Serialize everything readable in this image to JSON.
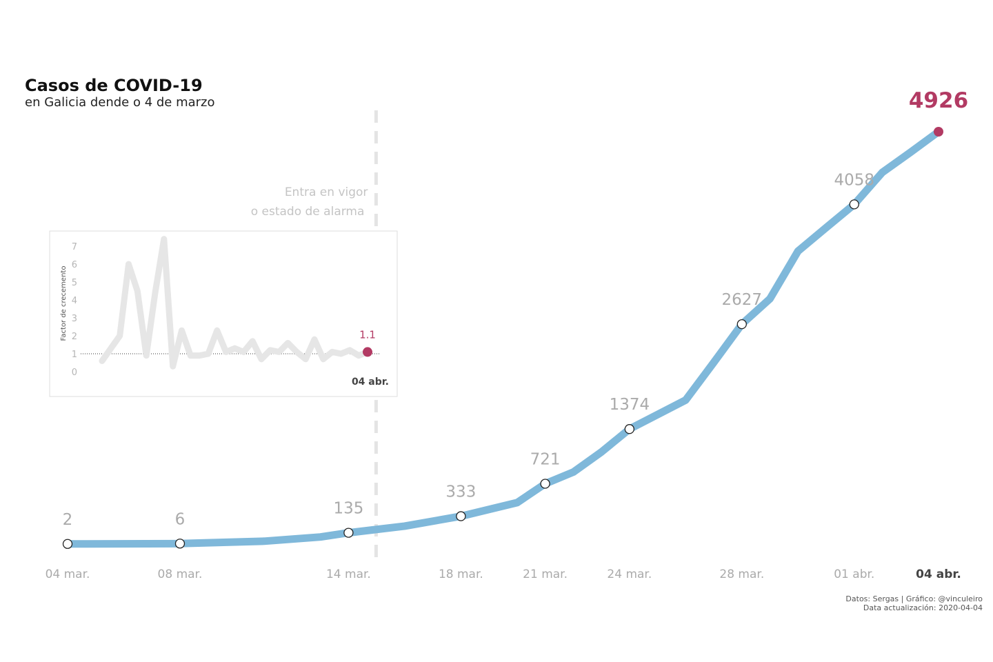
{
  "colors": {
    "line": "#7fb8da",
    "highlight": "#b23a63",
    "inset_line": "#e6e6e6",
    "marker_fill": "#ffffff",
    "marker_stroke": "#222222"
  },
  "annotation": {
    "line1": "Entra en vigor",
    "line2": "o estado de alarma",
    "date": "2020-03-14"
  },
  "source": {
    "line1": "Datos: Sergas | Gráfico: @vinculeiro",
    "line2": "Data actualización: 2020-04-04"
  },
  "chart_data": [
    {
      "type": "line",
      "title": "Casos de COVID-19",
      "subtitle": "en Galicia dende o 4 de marzo",
      "xlabel": "",
      "ylabel": "",
      "ylim": [
        0,
        5000
      ],
      "grid": false,
      "legend": "none",
      "x": [
        "2020-03-04",
        "2020-03-08",
        "2020-03-11",
        "2020-03-13",
        "2020-03-14",
        "2020-03-16",
        "2020-03-18",
        "2020-03-20",
        "2020-03-21",
        "2020-03-22",
        "2020-03-23",
        "2020-03-24",
        "2020-03-26",
        "2020-03-27",
        "2020-03-28",
        "2020-03-29",
        "2020-03-30",
        "2020-03-31",
        "2020-04-01",
        "2020-04-02",
        "2020-04-03",
        "2020-04-04"
      ],
      "series": [
        {
          "values": [
            2,
            6,
            35,
            85,
            135,
            215,
            333,
            495,
            721,
            860,
            1100,
            1374,
            1720,
            2170,
            2627,
            2930,
            3500,
            3780,
            4058,
            4440,
            4680,
            4926
          ]
        }
      ],
      "tick_labels": [
        {
          "date": "2020-03-04",
          "label": "04 mar."
        },
        {
          "date": "2020-03-08",
          "label": "08 mar."
        },
        {
          "date": "2020-03-14",
          "label": "14 mar."
        },
        {
          "date": "2020-03-18",
          "label": "18 mar."
        },
        {
          "date": "2020-03-21",
          "label": "21 mar."
        },
        {
          "date": "2020-03-24",
          "label": "24 mar."
        },
        {
          "date": "2020-03-28",
          "label": "28 mar."
        },
        {
          "date": "2020-04-01",
          "label": "01 abr."
        },
        {
          "date": "2020-04-04",
          "label": "04 abr."
        }
      ],
      "data_labels": [
        {
          "date": "2020-03-04",
          "value": 2,
          "label": "2"
        },
        {
          "date": "2020-03-08",
          "value": 6,
          "label": "6"
        },
        {
          "date": "2020-03-14",
          "value": 135,
          "label": "135"
        },
        {
          "date": "2020-03-18",
          "value": 333,
          "label": "333"
        },
        {
          "date": "2020-03-21",
          "value": 721,
          "label": "721"
        },
        {
          "date": "2020-03-24",
          "value": 1374,
          "label": "1374"
        },
        {
          "date": "2020-03-28",
          "value": 2627,
          "label": "2627"
        },
        {
          "date": "2020-04-01",
          "value": 4058,
          "label": "4058"
        },
        {
          "date": "2020-04-04",
          "value": 4926,
          "label": "4926"
        }
      ]
    },
    {
      "type": "line",
      "title": "",
      "xlabel": "",
      "ylabel": "Factor de crecemento",
      "ylim": [
        0,
        7.5
      ],
      "yticks": [
        "0",
        "1",
        "2",
        "3",
        "4",
        "5",
        "6",
        "7"
      ],
      "reference_line": 1,
      "grid": false,
      "legend": "none",
      "x": [
        "2020-03-05",
        "2020-03-06",
        "2020-03-07",
        "2020-03-08",
        "2020-03-09",
        "2020-03-10",
        "2020-03-11",
        "2020-03-12",
        "2020-03-13",
        "2020-03-14",
        "2020-03-15",
        "2020-03-16",
        "2020-03-17",
        "2020-03-18",
        "2020-03-19",
        "2020-03-20",
        "2020-03-21",
        "2020-03-22",
        "2020-03-23",
        "2020-03-24",
        "2020-03-25",
        "2020-03-26",
        "2020-03-27",
        "2020-03-28",
        "2020-03-29",
        "2020-03-30",
        "2020-03-31",
        "2020-04-01",
        "2020-04-02",
        "2020-04-03",
        "2020-04-04"
      ],
      "series": [
        {
          "values": [
            0.6,
            1.3,
            2.0,
            6.0,
            4.5,
            0.9,
            4.4,
            7.4,
            0.3,
            2.3,
            0.9,
            0.9,
            1.0,
            2.3,
            1.1,
            1.3,
            1.1,
            1.7,
            0.7,
            1.2,
            1.1,
            1.6,
            1.1,
            0.7,
            1.8,
            0.7,
            1.1,
            1.0,
            1.2,
            0.9,
            1.1
          ]
        }
      ],
      "value_label": "1.1",
      "date_label": "04 abr."
    }
  ]
}
